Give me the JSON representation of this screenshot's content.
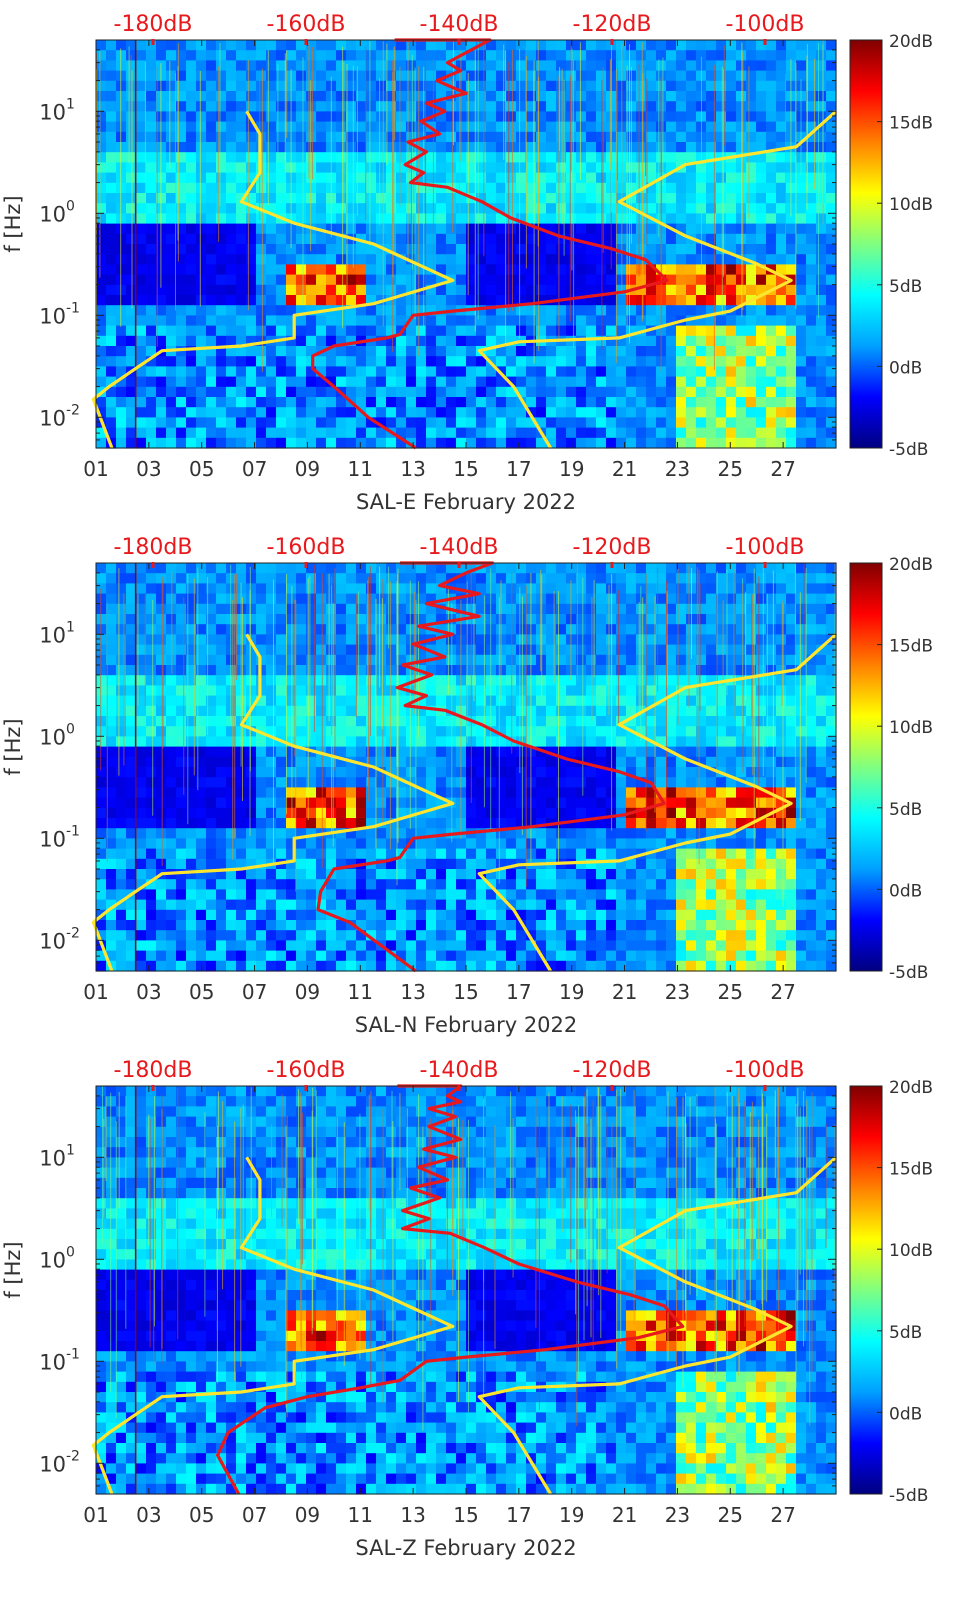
{
  "colors": {
    "noise_curves": "#ffe62e",
    "psd_curve": "#e8191c",
    "top_axis_text": "#e8191c",
    "colormap": [
      "#000080",
      "#0000ff",
      "#00a0ff",
      "#00ffff",
      "#80ff80",
      "#ffff00",
      "#ff8000",
      "#ff0000",
      "#800000"
    ]
  },
  "chart_data": [
    {
      "type": "heatmap",
      "title": "",
      "xlabel": "SAL-E February 2022",
      "ylabel": "f [Hz]",
      "x_ticks": [
        "01",
        "03",
        "05",
        "07",
        "09",
        "11",
        "13",
        "15",
        "17",
        "19",
        "21",
        "23",
        "25",
        "27"
      ],
      "y_scale": "log",
      "ylim": [
        0.005,
        50
      ],
      "y_ticks": [
        {
          "label": "10",
          "exp": "-2"
        },
        {
          "label": "10",
          "exp": "-1"
        },
        {
          "label": "10",
          "exp": "0"
        },
        {
          "label": "10",
          "exp": "1"
        }
      ],
      "top_axis_ticks": [
        "-180dB",
        "-160dB",
        "-140dB",
        "-120dB",
        "-100dB"
      ],
      "colorbar_ticks": [
        "20dB",
        "15dB",
        "10dB",
        "5dB",
        "0dB",
        "-5dB"
      ],
      "colorbar_range_db": [
        -5,
        20
      ],
      "series": [
        {
          "type": "line",
          "color": "yellow",
          "points": [
            [
              6.7,
              10
            ],
            [
              7.2,
              6
            ],
            [
              7.2,
              2.5
            ],
            [
              6.5,
              1.3
            ],
            [
              8.5,
              0.8
            ],
            [
              11.5,
              0.5
            ],
            [
              14.5,
              0.22
            ],
            [
              11.5,
              0.13
            ],
            [
              8.5,
              0.1
            ],
            [
              8.5,
              0.06
            ],
            [
              6.5,
              0.05
            ],
            [
              3.5,
              0.045
            ],
            [
              2.5,
              0.03
            ],
            [
              1.5,
              0.02
            ],
            [
              0.9,
              0.015
            ],
            [
              1.6,
              0.005
            ]
          ]
        },
        {
          "type": "line",
          "color": "yellow",
          "points": [
            [
              29,
              10
            ],
            [
              27.5,
              4.5
            ],
            [
              23.3,
              3
            ],
            [
              20.8,
              1.3
            ],
            [
              23.3,
              0.6
            ],
            [
              26,
              0.32
            ],
            [
              27.3,
              0.22
            ],
            [
              25,
              0.11
            ],
            [
              23.3,
              0.09
            ],
            [
              20.8,
              0.06
            ],
            [
              17,
              0.055
            ],
            [
              15.5,
              0.045
            ],
            [
              16.8,
              0.02
            ],
            [
              18.2,
              0.005
            ]
          ]
        },
        {
          "type": "line",
          "color": "red",
          "points": [
            [
              12.3,
              50
            ],
            [
              15.9,
              50
            ],
            [
              15.2,
              40
            ],
            [
              14.3,
              30
            ],
            [
              14.8,
              25
            ],
            [
              13.9,
              20
            ],
            [
              15,
              15
            ],
            [
              13.5,
              12
            ],
            [
              14.2,
              10
            ],
            [
              13.3,
              8
            ],
            [
              14,
              6
            ],
            [
              12.8,
              5
            ],
            [
              13.5,
              4
            ],
            [
              12.7,
              3
            ],
            [
              13.4,
              2.5
            ],
            [
              12.9,
              2
            ],
            [
              14.3,
              1.8
            ],
            [
              15.6,
              1.3
            ],
            [
              16.7,
              0.9
            ],
            [
              18.5,
              0.6
            ],
            [
              20.5,
              0.45
            ],
            [
              21.8,
              0.35
            ],
            [
              22.6,
              0.22
            ],
            [
              21,
              0.17
            ],
            [
              17.5,
              0.13
            ],
            [
              14.5,
              0.11
            ],
            [
              13,
              0.1
            ],
            [
              12.5,
              0.065
            ],
            [
              12,
              0.06
            ],
            [
              10,
              0.05
            ],
            [
              9.2,
              0.04
            ],
            [
              9.2,
              0.03
            ],
            [
              10,
              0.02
            ],
            [
              11.3,
              0.01
            ],
            [
              13.1,
              0.005
            ]
          ]
        }
      ]
    },
    {
      "type": "heatmap",
      "title": "",
      "xlabel": "SAL-N February 2022",
      "ylabel": "f [Hz]",
      "x_ticks": [
        "01",
        "03",
        "05",
        "07",
        "09",
        "11",
        "13",
        "15",
        "17",
        "19",
        "21",
        "23",
        "25",
        "27"
      ],
      "y_scale": "log",
      "ylim": [
        0.005,
        50
      ],
      "y_ticks": [
        {
          "label": "10",
          "exp": "-2"
        },
        {
          "label": "10",
          "exp": "-1"
        },
        {
          "label": "10",
          "exp": "0"
        },
        {
          "label": "10",
          "exp": "1"
        }
      ],
      "top_axis_ticks": [
        "-180dB",
        "-160dB",
        "-140dB",
        "-120dB",
        "-100dB"
      ],
      "colorbar_ticks": [
        "20dB",
        "15dB",
        "10dB",
        "5dB",
        "0dB",
        "-5dB"
      ],
      "colorbar_range_db": [
        -5,
        20
      ],
      "series": [
        {
          "type": "line",
          "color": "yellow",
          "points": [
            [
              6.7,
              10
            ],
            [
              7.2,
              6
            ],
            [
              7.2,
              2.5
            ],
            [
              6.5,
              1.3
            ],
            [
              8.5,
              0.8
            ],
            [
              11.5,
              0.5
            ],
            [
              14.5,
              0.22
            ],
            [
              11.5,
              0.13
            ],
            [
              8.5,
              0.1
            ],
            [
              8.5,
              0.06
            ],
            [
              6.5,
              0.05
            ],
            [
              3.5,
              0.045
            ],
            [
              2.5,
              0.03
            ],
            [
              1.5,
              0.02
            ],
            [
              0.9,
              0.015
            ],
            [
              1.6,
              0.005
            ]
          ]
        },
        {
          "type": "line",
          "color": "yellow",
          "points": [
            [
              29,
              10
            ],
            [
              27.5,
              4.5
            ],
            [
              23.3,
              3
            ],
            [
              20.8,
              1.3
            ],
            [
              23.3,
              0.6
            ],
            [
              26,
              0.32
            ],
            [
              27.3,
              0.22
            ],
            [
              25,
              0.11
            ],
            [
              23.3,
              0.09
            ],
            [
              20.8,
              0.06
            ],
            [
              17,
              0.055
            ],
            [
              15.5,
              0.045
            ],
            [
              16.8,
              0.02
            ],
            [
              18.2,
              0.005
            ]
          ]
        },
        {
          "type": "line",
          "color": "red",
          "points": [
            [
              12.5,
              50
            ],
            [
              16,
              50
            ],
            [
              15,
              40
            ],
            [
              14,
              30
            ],
            [
              15.5,
              25
            ],
            [
              13.5,
              20
            ],
            [
              15.5,
              15
            ],
            [
              13.2,
              12
            ],
            [
              14.5,
              10
            ],
            [
              13,
              8
            ],
            [
              14.2,
              6
            ],
            [
              12.6,
              5
            ],
            [
              13.7,
              4
            ],
            [
              12.4,
              3
            ],
            [
              13.5,
              2.5
            ],
            [
              12.7,
              2
            ],
            [
              14.2,
              1.8
            ],
            [
              15.6,
              1.3
            ],
            [
              16.8,
              0.9
            ],
            [
              18.8,
              0.6
            ],
            [
              20.8,
              0.45
            ],
            [
              22,
              0.35
            ],
            [
              22.5,
              0.22
            ],
            [
              21,
              0.17
            ],
            [
              17.5,
              0.13
            ],
            [
              14.5,
              0.11
            ],
            [
              13,
              0.1
            ],
            [
              12.5,
              0.065
            ],
            [
              12,
              0.06
            ],
            [
              10,
              0.05
            ],
            [
              9.5,
              0.03
            ],
            [
              9.4,
              0.02
            ],
            [
              10.6,
              0.015
            ],
            [
              13.1,
              0.005
            ]
          ]
        }
      ]
    },
    {
      "type": "heatmap",
      "title": "",
      "xlabel": "SAL-Z February 2022",
      "ylabel": "f [Hz]",
      "x_ticks": [
        "01",
        "03",
        "05",
        "07",
        "09",
        "11",
        "13",
        "15",
        "17",
        "19",
        "21",
        "23",
        "25",
        "27"
      ],
      "y_scale": "log",
      "ylim": [
        0.005,
        50
      ],
      "y_ticks": [
        {
          "label": "10",
          "exp": "-2"
        },
        {
          "label": "10",
          "exp": "-1"
        },
        {
          "label": "10",
          "exp": "0"
        },
        {
          "label": "10",
          "exp": "1"
        }
      ],
      "top_axis_ticks": [
        "-180dB",
        "-160dB",
        "-140dB",
        "-120dB",
        "-100dB"
      ],
      "colorbar_ticks": [
        "20dB",
        "15dB",
        "10dB",
        "5dB",
        "0dB",
        "-5dB"
      ],
      "colorbar_range_db": [
        -5,
        20
      ],
      "series": [
        {
          "type": "line",
          "color": "yellow",
          "points": [
            [
              6.7,
              10
            ],
            [
              7.2,
              6
            ],
            [
              7.2,
              2.5
            ],
            [
              6.5,
              1.3
            ],
            [
              8.5,
              0.8
            ],
            [
              11.5,
              0.5
            ],
            [
              14.5,
              0.22
            ],
            [
              11.5,
              0.13
            ],
            [
              8.5,
              0.1
            ],
            [
              8.5,
              0.06
            ],
            [
              6.5,
              0.05
            ],
            [
              3.5,
              0.045
            ],
            [
              2.5,
              0.03
            ],
            [
              1.5,
              0.02
            ],
            [
              0.9,
              0.015
            ],
            [
              1.6,
              0.005
            ]
          ]
        },
        {
          "type": "line",
          "color": "yellow",
          "points": [
            [
              29,
              10
            ],
            [
              27.5,
              4.5
            ],
            [
              23.3,
              3
            ],
            [
              20.8,
              1.3
            ],
            [
              23.3,
              0.6
            ],
            [
              26,
              0.32
            ],
            [
              27.3,
              0.22
            ],
            [
              25,
              0.11
            ],
            [
              23.3,
              0.09
            ],
            [
              20.8,
              0.06
            ],
            [
              17,
              0.055
            ],
            [
              15.5,
              0.045
            ],
            [
              16.8,
              0.02
            ],
            [
              18.2,
              0.005
            ]
          ]
        },
        {
          "type": "line",
          "color": "red",
          "points": [
            [
              12.4,
              50
            ],
            [
              14.8,
              50
            ],
            [
              14.3,
              40
            ],
            [
              14.8,
              35
            ],
            [
              13.6,
              30
            ],
            [
              14.6,
              25
            ],
            [
              13.6,
              20
            ],
            [
              14.8,
              15
            ],
            [
              13.4,
              12
            ],
            [
              14.6,
              10
            ],
            [
              13.2,
              8
            ],
            [
              14.3,
              6
            ],
            [
              12.9,
              5
            ],
            [
              14,
              4
            ],
            [
              12.6,
              3
            ],
            [
              13.6,
              2.5
            ],
            [
              12.6,
              2
            ],
            [
              14.4,
              1.8
            ],
            [
              15.7,
              1.3
            ],
            [
              17,
              0.9
            ],
            [
              19.2,
              0.6
            ],
            [
              21.2,
              0.45
            ],
            [
              22.5,
              0.35
            ],
            [
              23.2,
              0.22
            ],
            [
              21.5,
              0.17
            ],
            [
              18,
              0.13
            ],
            [
              15,
              0.11
            ],
            [
              13.5,
              0.1
            ],
            [
              12.5,
              0.065
            ],
            [
              11,
              0.055
            ],
            [
              9,
              0.045
            ],
            [
              7.4,
              0.035
            ],
            [
              6,
              0.02
            ],
            [
              5.6,
              0.012
            ],
            [
              6.4,
              0.005
            ]
          ]
        }
      ]
    }
  ]
}
